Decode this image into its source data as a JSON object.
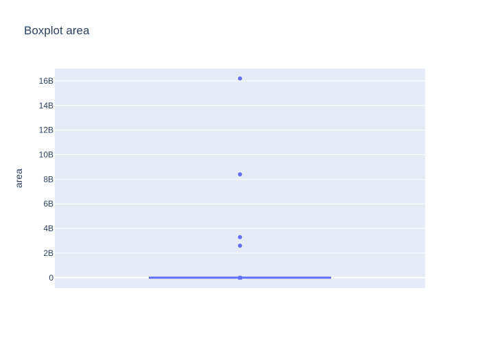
{
  "chart_data": {
    "type": "box",
    "title": "Boxplot area",
    "xlabel": "",
    "ylabel": "area",
    "ylim": [
      -850000000,
      17000000000
    ],
    "grid": true,
    "yticks": [
      {
        "value": 0,
        "label": "0"
      },
      {
        "value": 2000000000,
        "label": "2B"
      },
      {
        "value": 4000000000,
        "label": "4B"
      },
      {
        "value": 6000000000,
        "label": "6B"
      },
      {
        "value": 8000000000,
        "label": "8B"
      },
      {
        "value": 10000000000,
        "label": "10B"
      },
      {
        "value": 12000000000,
        "label": "12B"
      },
      {
        "value": 14000000000,
        "label": "14B"
      },
      {
        "value": 16000000000,
        "label": "16B"
      }
    ],
    "box": {
      "q1": 0,
      "median": 0,
      "q3": 0,
      "whisker_low": 0,
      "whisker_high": 10000000,
      "outliers": [
        16200000000,
        8400000000,
        3300000000,
        2600000000,
        0
      ]
    },
    "colors": {
      "box": "#636efa",
      "plot_bg": "#e5ecf6",
      "grid": "#ffffff",
      "text": "#2a3f5f"
    }
  }
}
